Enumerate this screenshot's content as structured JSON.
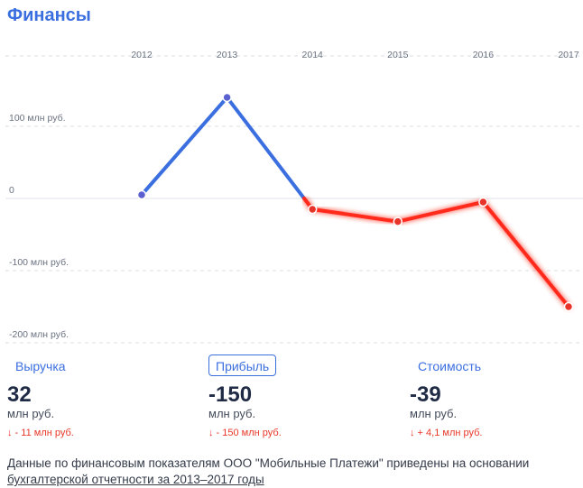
{
  "title": "Финансы",
  "chart_data": {
    "type": "line",
    "x": [
      2012,
      2013,
      2014,
      2015,
      2016,
      2017
    ],
    "x_tick_labels": [
      "2012",
      "2013",
      "2014",
      "2015",
      "2016",
      "2017"
    ],
    "y_tick_labels": [
      {
        "value": 100,
        "label": "100 млн руб."
      },
      {
        "value": 0,
        "label": "0"
      },
      {
        "value": -100,
        "label": "-100 млн руб."
      },
      {
        "value": -200,
        "label": "-200 млн руб."
      }
    ],
    "series": [
      {
        "values": [
          5,
          140,
          -15,
          -32,
          -5,
          -150
        ]
      }
    ],
    "ylim": [
      -200,
      170
    ],
    "grid": true,
    "colors": {
      "positive": "#3b6fe0",
      "negative": "#ff2a1a",
      "point_positive": "#5a60d0",
      "point_negative": "#e8332a"
    }
  },
  "metrics": [
    {
      "label": "Выручка",
      "value": "32",
      "unit": "млн руб.",
      "change": "↓ - 11 млн руб.",
      "active": false
    },
    {
      "label": "Прибыль",
      "value": "-150",
      "unit": "млн руб.",
      "change": "↓ - 150 млн руб.",
      "active": true
    },
    {
      "label": "Стоимость",
      "value": "-39",
      "unit": "млн руб.",
      "change": "↓ + 4,1 млн руб.",
      "active": false
    }
  ],
  "footer": {
    "text": "Данные по финансовым показателям ООО \"Мобильные Платежи\" приведены на основании ",
    "link": "бухгалтерской отчетности за 2013–2017 годы"
  }
}
